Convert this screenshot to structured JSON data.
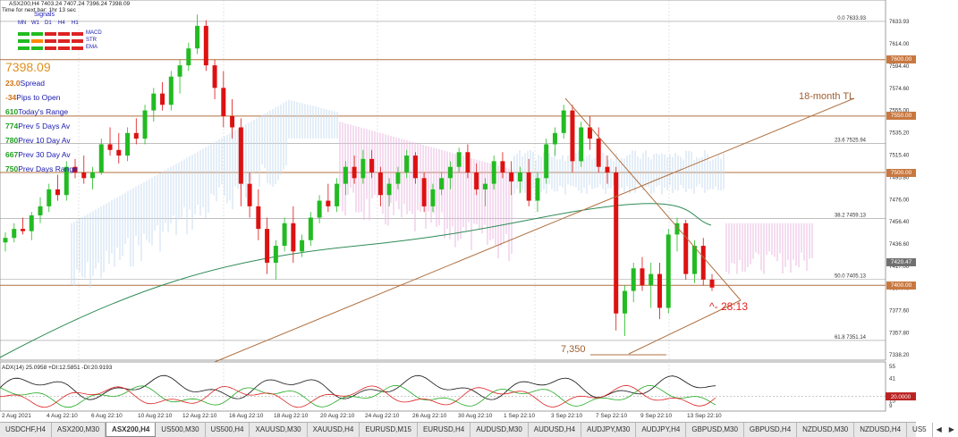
{
  "header": {
    "symbol_info": "ASX200,H4  7403.24 7407.24 7396.24 7398.09",
    "countdown": "Time for next bar: 1hr 13 sec",
    "signals_title": "Signals"
  },
  "signals": {
    "timeframes": [
      "MN",
      "W1",
      "D1",
      "H4",
      "H1"
    ],
    "rows": [
      {
        "label": "MACD",
        "colors": [
          "#22bb22",
          "#22bb22",
          "#dd2222",
          "#dd2222",
          "#dd2222"
        ]
      },
      {
        "label": "STR",
        "colors": [
          "#22bb22",
          "#ff8800",
          "#dd2222",
          "#dd2222",
          "#dd2222"
        ]
      },
      {
        "label": "EMA",
        "colors": [
          "#22bb22",
          "#22bb22",
          "#dd2222",
          "#dd2222",
          "#dd2222"
        ]
      }
    ]
  },
  "price_big": "7398.09",
  "stats": [
    {
      "value": "23.0",
      "label": "Spread",
      "color": "orange"
    },
    {
      "value": "-34",
      "label": "Pips to Open",
      "color": "orange"
    },
    {
      "value": "610",
      "label": "Today's Range",
      "color": "green"
    },
    {
      "value": "774",
      "label": "Prev 5 Days Av",
      "color": "green"
    },
    {
      "value": "780",
      "label": "Prev 10 Day Av",
      "color": "green"
    },
    {
      "value": "667",
      "label": "Prev 30 Day Av",
      "color": "green"
    },
    {
      "value": "750",
      "label": "Prev Days Range",
      "color": "green"
    }
  ],
  "annotations": {
    "trendline_label": "18-month TL",
    "countdown_label": "^- 28:13",
    "support_label": "7,350"
  },
  "fib_levels": [
    {
      "label": "0.0  7633.93",
      "value": 7633.93
    },
    {
      "label": "23.6  7525.94",
      "value": 7525.94
    },
    {
      "label": "38.2  7459.13",
      "value": 7459.13
    },
    {
      "label": "50.0  7405.13",
      "value": 7405.13
    },
    {
      "label": "61.8  7351.14",
      "value": 7351.14
    }
  ],
  "price_axis": [
    "7633.93",
    "7614.00",
    "7594.40",
    "7574.60",
    "7555.00",
    "7535.20",
    "7515.40",
    "7495.80",
    "7476.00",
    "7456.40",
    "7436.60",
    "7417.00",
    "7397.40",
    "7377.60",
    "7357.80",
    "7338.20"
  ],
  "price_boxes": [
    {
      "text": "7600.00",
      "value": 7600,
      "bg": "#c87840",
      "fg": "#ffffff"
    },
    {
      "text": "7550.00",
      "value": 7550,
      "bg": "#c87840",
      "fg": "#ffffff"
    },
    {
      "text": "7500.00",
      "value": 7500,
      "bg": "#c87840",
      "fg": "#ffffff"
    },
    {
      "text": "7420.47",
      "value": 7420.47,
      "bg": "#707070",
      "fg": "#ffffff"
    },
    {
      "text": "7400.00",
      "value": 7400,
      "bg": "#c87840",
      "fg": "#ffffff"
    }
  ],
  "horizontal_levels": [
    7600,
    7550,
    7500,
    7400
  ],
  "indicator": {
    "label": "ADX(14) 25.0958 +DI:12.5851 -DI:20.9193",
    "axis": [
      "55",
      "41",
      "20",
      "15",
      "9"
    ],
    "box": "20.0000"
  },
  "time_axis": [
    "2 Aug 2021",
    "4 Aug 22:10",
    "6 Aug 22:10",
    "10 Aug 22:10",
    "12 Aug 22:10",
    "16 Aug 22:10",
    "18 Aug 22:10",
    "20 Aug 22:10",
    "24 Aug 22:10",
    "26 Aug 22:10",
    "30 Aug 22:10",
    "1 Sep 22:10",
    "3 Sep 22:10",
    "7 Sep 22:10",
    "9 Sep 22:10",
    "13 Sep 22:10"
  ],
  "tabs": [
    "USDCHF,H4",
    "ASX200,M30",
    "ASX200,H4",
    "US500,M30",
    "US500,H4",
    "XAUUSD,M30",
    "XAUUSD,H4",
    "EURUSD,M15",
    "EURUSD,H4",
    "AUDUSD,M30",
    "AUDUSD,H4",
    "AUDJPY,M30",
    "AUDJPY,H4",
    "GBPUSD,M30",
    "GBPUSD,H4",
    "NZDUSD,M30",
    "NZDUSD,H4",
    "US5"
  ],
  "active_tab": "ASX200,H4",
  "colors": {
    "bull": "#22bb22",
    "bear": "#dd1111",
    "level": "#b07040",
    "trendline": "#b07040",
    "sma": "#2e8b57",
    "cloud_up": "#c8ddf0",
    "cloud_down": "#e8b8e0"
  }
}
